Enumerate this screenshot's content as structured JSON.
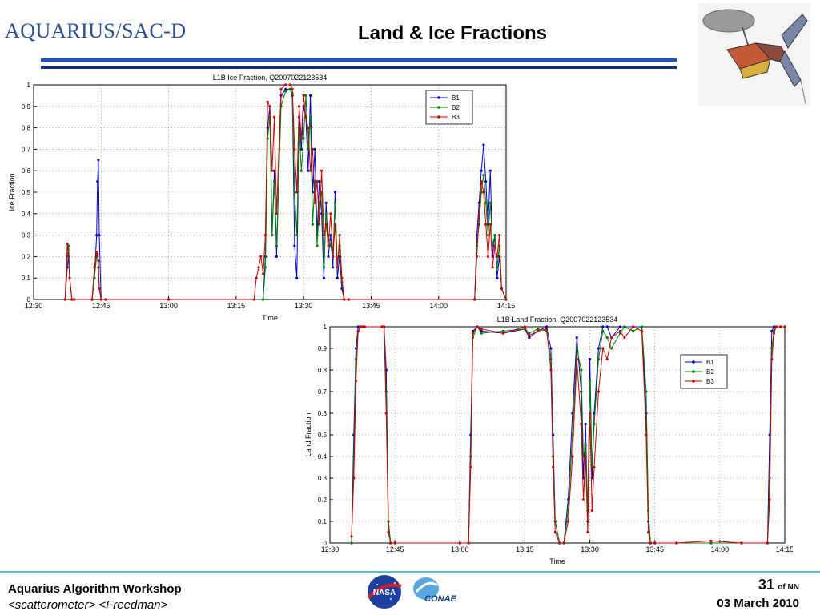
{
  "header": {
    "logo_main": "AQUARIUS",
    "logo_slash": "/",
    "logo_sub": "SAC-D",
    "title": "Land & Ice Fractions"
  },
  "footer": {
    "workshop": "Aquarius Algorithm Workshop",
    "authors": "<scatterometer> <Freedman>",
    "page_number": "31",
    "page_of": "of NN",
    "date": "03 March 2010",
    "logo_left_text": "NASA",
    "logo_right_text": "CONAE"
  },
  "colors": {
    "B1": "#0000cc",
    "B2": "#008000",
    "B3": "#cc0000",
    "header_bar": "#1a53c9",
    "footer_line": "#48c6d8"
  },
  "chart_data": [
    {
      "type": "line",
      "title": "L1B Ice Fraction, Q2007022123534",
      "xlabel": "Time",
      "ylabel": "Ice Fraction",
      "xlim": [
        0,
        105
      ],
      "ylim": [
        0,
        1
      ],
      "x_ticks": [
        0,
        15,
        30,
        45,
        60,
        75,
        90,
        105
      ],
      "x_tick_labels": [
        "12:30",
        "12:45",
        "13:00",
        "13:15",
        "13:30",
        "13:45",
        "14:00",
        "14:15"
      ],
      "y_ticks": [
        0,
        0.1,
        0.2,
        0.3,
        0.4,
        0.5,
        0.6,
        0.7,
        0.8,
        0.9,
        1
      ],
      "y_tick_labels": [
        "0",
        "0.1",
        "0.2",
        "0.3",
        "0.4",
        "0.5",
        "0.6",
        "0.7",
        "0.8",
        "0.9",
        "1"
      ],
      "grid": true,
      "legend": "top-right",
      "series": [
        {
          "name": "B1",
          "x": [
            7,
            7.5,
            7.8,
            8,
            8.5,
            9,
            13,
            13.5,
            14,
            14.2,
            14.4,
            14.6,
            15,
            16,
            30,
            51,
            51.5,
            52,
            52.5,
            53,
            53.5,
            54,
            55,
            56,
            57,
            57.5,
            58,
            58.5,
            59,
            59.5,
            60,
            60.5,
            61,
            61.5,
            62,
            62.5,
            63,
            63.5,
            64,
            64.5,
            65,
            65.5,
            66,
            66.5,
            67,
            67.5,
            68,
            68.5,
            69,
            70,
            98,
            98.5,
            99,
            99.5,
            100,
            100.5,
            101,
            101.5,
            102,
            102.5,
            103,
            103.5,
            104,
            105
          ],
          "y": [
            0,
            0.15,
            0.2,
            0.1,
            0,
            0,
            0,
            0.1,
            0.3,
            0.55,
            0.65,
            0.3,
            0,
            0,
            0,
            0,
            0.2,
            0.8,
            0.9,
            0.3,
            0.6,
            0.2,
            0.95,
            0.98,
            0.98,
            0.95,
            0.25,
            0.1,
            0.85,
            0.7,
            0.9,
            0.85,
            0.6,
            0.95,
            0.5,
            0.7,
            0.3,
            0.55,
            0.4,
            0.1,
            0.45,
            0.2,
            0.3,
            0.15,
            0.5,
            0.1,
            0.2,
            0.05,
            0,
            0,
            0,
            0.3,
            0.45,
            0.6,
            0.72,
            0.55,
            0.35,
            0.6,
            0.2,
            0.3,
            0.1,
            0.2,
            0.05,
            0
          ]
        },
        {
          "name": "B2",
          "x": [
            7,
            7.5,
            7.8,
            8,
            8.5,
            9,
            13,
            13.5,
            14,
            14.2,
            14.4,
            14.6,
            15,
            16,
            30,
            51,
            51.5,
            52,
            52.5,
            53,
            53.5,
            54,
            55,
            56,
            57,
            57.5,
            58,
            58.5,
            59,
            59.5,
            60,
            60.5,
            61,
            61.5,
            62,
            62.5,
            63,
            63.5,
            64,
            64.5,
            65,
            65.5,
            66,
            66.5,
            67,
            67.5,
            68,
            68.5,
            69,
            70,
            98,
            98.5,
            99,
            99.5,
            100,
            100.5,
            101,
            101.5,
            102,
            102.5,
            103,
            103.5,
            104,
            105
          ],
          "y": [
            0,
            0.2,
            0.25,
            0.1,
            0,
            0,
            0,
            0.1,
            0.2,
            0.2,
            0.15,
            0.05,
            0,
            0,
            0,
            0,
            0.15,
            0.75,
            0.85,
            0.3,
            0.55,
            0.25,
            0.9,
            0.97,
            0.98,
            0.96,
            0.5,
            0.3,
            0.8,
            0.6,
            0.75,
            0.95,
            0.7,
            0.85,
            0.35,
            0.55,
            0.25,
            0.45,
            0.5,
            0.15,
            0.4,
            0.3,
            0.25,
            0.2,
            0.45,
            0.15,
            0.25,
            0.08,
            0,
            0,
            0,
            0.25,
            0.35,
            0.5,
            0.58,
            0.45,
            0.3,
            0.45,
            0.25,
            0.3,
            0.15,
            0.25,
            0.05,
            0
          ]
        },
        {
          "name": "B3",
          "x": [
            7,
            7.5,
            7.8,
            8,
            8.5,
            9,
            13,
            13.5,
            14,
            14.2,
            14.4,
            14.6,
            15,
            16,
            30,
            49,
            49.5,
            50,
            50.5,
            51,
            51.5,
            52,
            52.5,
            53,
            53.5,
            54,
            55,
            56,
            57,
            57.5,
            58,
            58.5,
            59,
            59.5,
            60,
            60.5,
            61,
            61.5,
            62,
            62.5,
            63,
            63.5,
            64,
            64.5,
            65,
            65.5,
            66,
            66.5,
            67,
            67.5,
            68,
            68.5,
            69,
            70,
            98,
            98.5,
            99,
            99.5,
            100,
            100.5,
            101,
            101.5,
            102,
            102.5,
            103,
            103.5,
            104,
            105
          ],
          "y": [
            0,
            0.26,
            0.2,
            0.1,
            0,
            0,
            0,
            0.15,
            0.22,
            0.21,
            0.18,
            0.05,
            0,
            0,
            0,
            0,
            0.1,
            0.15,
            0.2,
            0.12,
            0.3,
            0.92,
            0.9,
            0.6,
            0.85,
            0.4,
            0.98,
            1,
            1,
            0.98,
            0.7,
            0.5,
            0.9,
            0.75,
            0.95,
            0.85,
            0.8,
            0.6,
            0.7,
            0.45,
            0.55,
            0.35,
            0.6,
            0.3,
            0.35,
            0.25,
            0.4,
            0.2,
            0.35,
            0.15,
            0.3,
            0.1,
            0,
            0,
            0,
            0.2,
            0.4,
            0.55,
            0.5,
            0.35,
            0.2,
            0.35,
            0.15,
            0.25,
            0.2,
            0.3,
            0.05,
            0
          ]
        }
      ]
    },
    {
      "type": "line",
      "title": "L1B Land Fraction, Q2007022123534",
      "xlabel": "Time",
      "ylabel": "Land Fraction",
      "xlim": [
        0,
        105
      ],
      "ylim": [
        0,
        1
      ],
      "x_ticks": [
        0,
        15,
        30,
        45,
        60,
        75,
        90,
        105
      ],
      "x_tick_labels": [
        "12:30",
        "12:45",
        "13:00",
        "13:15",
        "13:30",
        "13:45",
        "14:00",
        "14:15"
      ],
      "y_ticks": [
        0,
        0.1,
        0.2,
        0.3,
        0.4,
        0.5,
        0.6,
        0.7,
        0.8,
        0.9,
        1
      ],
      "y_tick_labels": [
        "0",
        "0.1",
        "0.2",
        "0.3",
        "0.4",
        "0.5",
        "0.6",
        "0.7",
        "0.8",
        "0.9",
        "1"
      ],
      "grid": true,
      "legend": "right",
      "series": [
        {
          "name": "B1",
          "x": [
            5,
            5.5,
            6,
            6.5,
            7,
            7.5,
            8,
            12,
            12.5,
            13,
            13.5,
            14,
            15,
            30,
            32,
            32.5,
            33,
            34,
            35,
            40,
            45,
            46,
            48,
            50,
            51,
            51.5,
            52,
            53,
            54,
            55,
            56,
            57,
            58,
            58.5,
            59,
            59.5,
            60,
            60.5,
            61,
            62,
            63,
            64,
            65,
            67,
            68,
            70,
            72,
            73,
            73.5,
            74,
            75,
            80,
            88,
            95,
            101,
            101.5,
            102,
            102.5,
            103,
            104,
            105
          ],
          "y": [
            0,
            0.5,
            0.9,
            1,
            1,
            1,
            1,
            1,
            1,
            0.8,
            0.1,
            0,
            0,
            0,
            0,
            0.5,
            0.98,
            1,
            0.98,
            0.97,
            0.99,
            0.95,
            0.98,
            1,
            0.9,
            0.5,
            0.1,
            0,
            0,
            0.2,
            0.6,
            0.95,
            0.7,
            0.3,
            0.55,
            0.1,
            0.85,
            0.3,
            0.6,
            0.9,
            1,
            1,
            0.95,
            1,
            1,
            1,
            1,
            0.6,
            0.1,
            0,
            0,
            0,
            0,
            0,
            0,
            0.5,
            0.98,
            1,
            1,
            1,
            1
          ]
        },
        {
          "name": "B2",
          "x": [
            5,
            5.5,
            6,
            6.5,
            7,
            7.5,
            8,
            12,
            12.5,
            13,
            13.5,
            14,
            15,
            30,
            32,
            32.5,
            33,
            34,
            35,
            40,
            45,
            46,
            48,
            50,
            51,
            51.5,
            52,
            53,
            54,
            55,
            56,
            57,
            58,
            58.5,
            59,
            59.5,
            60,
            60.5,
            61,
            62,
            63,
            64,
            65,
            67,
            68,
            70,
            72,
            73,
            73.5,
            74,
            75,
            80,
            88,
            95,
            101,
            101.5,
            102,
            102.5,
            103,
            104,
            105
          ],
          "y": [
            0,
            0.4,
            0.85,
            0.98,
            1,
            1,
            1,
            1,
            1,
            0.7,
            0.1,
            0,
            0,
            0,
            0,
            0.4,
            0.95,
            1,
            0.97,
            0.98,
            0.99,
            0.97,
            0.99,
            0.98,
            0.85,
            0.4,
            0.1,
            0,
            0,
            0.15,
            0.5,
            0.9,
            0.8,
            0.4,
            0.45,
            0.15,
            0.75,
            0.35,
            0.55,
            0.85,
            0.98,
            0.95,
            0.9,
            0.97,
            1,
            0.98,
            1,
            0.7,
            0.15,
            0,
            0,
            0,
            0,
            0,
            0,
            0.3,
            0.9,
            0.98,
            1,
            1,
            1
          ]
        },
        {
          "name": "B3",
          "x": [
            5,
            5.5,
            6,
            6.5,
            7,
            7.5,
            8,
            12,
            12.5,
            13,
            13.5,
            14,
            15,
            30,
            32,
            32.5,
            33,
            34,
            35,
            40,
            45,
            46,
            48,
            50,
            51,
            51.5,
            52,
            53,
            54,
            55,
            56,
            57,
            58,
            58.5,
            59,
            59.5,
            60,
            60.5,
            61,
            62,
            63,
            64,
            65,
            67,
            68,
            70,
            72,
            73,
            73.5,
            74,
            75,
            80,
            88,
            95,
            101,
            101.5,
            102,
            102.5,
            103,
            104,
            105
          ],
          "y": [
            0.03,
            0.3,
            0.75,
            0.98,
            1,
            1,
            1,
            1,
            1,
            0.6,
            0.05,
            0,
            0,
            0,
            0,
            0.35,
            0.97,
            1,
            0.99,
            0.97,
            1,
            0.96,
            0.98,
            0.99,
            0.8,
            0.35,
            0.05,
            0,
            0,
            0.1,
            0.4,
            0.85,
            0.55,
            0.2,
            0.4,
            0.05,
            0.6,
            0.15,
            0.35,
            0.7,
            0.9,
            0.85,
            0.95,
            0.98,
            0.95,
            1,
            0.98,
            0.5,
            0.05,
            0,
            0,
            0,
            0.01,
            0,
            0,
            0.2,
            0.85,
            0.97,
            1,
            1,
            1
          ]
        }
      ]
    }
  ]
}
